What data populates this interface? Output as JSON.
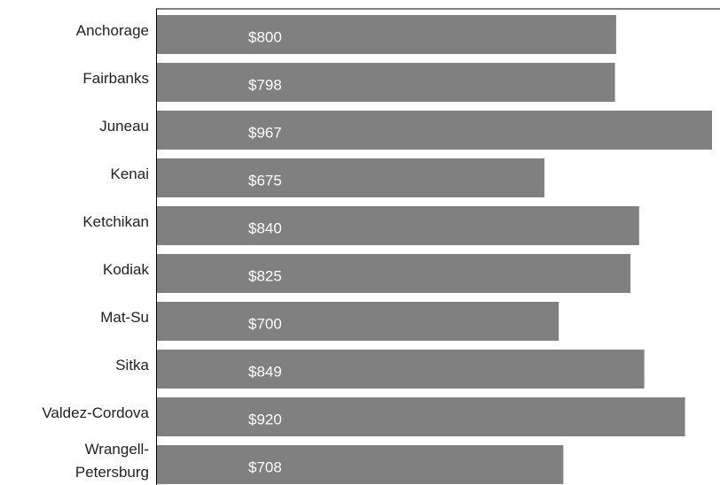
{
  "chart_data": {
    "type": "bar",
    "orientation": "horizontal",
    "categories": [
      "Anchorage",
      "Fairbanks",
      "Juneau",
      "Kenai",
      "Ketchikan",
      "Kodiak",
      "Mat-Su",
      "Sitka",
      "Valdez-Cordova",
      "Wrangell-Petersburg"
    ],
    "values": [
      800,
      798,
      967,
      675,
      840,
      825,
      700,
      849,
      920,
      708
    ],
    "value_labels": [
      "$800",
      "$798",
      "$967",
      "$675",
      "$840",
      "$825",
      "$700",
      "$849",
      "$920",
      "$708"
    ],
    "color": "#808080"
  }
}
